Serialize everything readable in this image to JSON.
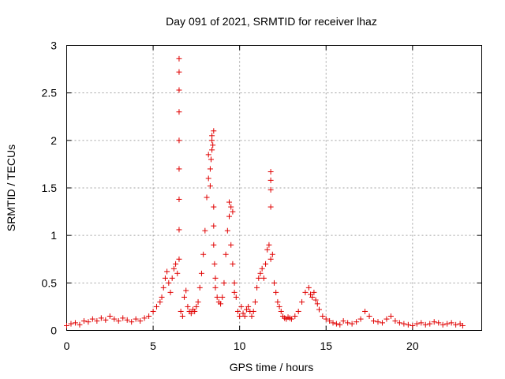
{
  "chart_data": {
    "type": "scatter",
    "title": "Day 091 of 2021, SRMTID for receiver lhaz",
    "xlabel": "GPS time / hours",
    "ylabel": "SRMTID / TECUs",
    "xlim": [
      0,
      24
    ],
    "ylim": [
      0,
      3
    ],
    "xticks": [
      "0",
      "5",
      "10",
      "15",
      "20"
    ],
    "yticks": [
      "0",
      "0.5",
      "1",
      "1.5",
      "2",
      "2.5",
      "3"
    ],
    "grid": true,
    "marker": "+",
    "color": "#e00000",
    "series": [
      {
        "name": "SRMTID",
        "x": [
          0.0,
          0.25,
          0.5,
          0.75,
          1.0,
          1.25,
          1.5,
          1.75,
          2.0,
          2.25,
          2.5,
          2.75,
          3.0,
          3.25,
          3.5,
          3.75,
          4.0,
          4.25,
          4.5,
          4.75,
          5.0,
          5.2,
          5.4,
          5.5,
          5.6,
          5.7,
          5.8,
          5.9,
          6.0,
          6.1,
          6.2,
          6.3,
          6.4,
          6.5,
          6.5,
          6.5,
          6.5,
          6.5,
          6.5,
          6.5,
          6.5,
          6.5,
          6.6,
          6.7,
          6.8,
          6.9,
          7.0,
          7.1,
          7.2,
          7.3,
          7.4,
          7.5,
          7.6,
          7.7,
          7.8,
          7.9,
          8.0,
          8.1,
          8.2,
          8.2,
          8.3,
          8.3,
          8.35,
          8.4,
          8.4,
          8.4,
          8.45,
          8.5,
          8.5,
          8.5,
          8.5,
          8.55,
          8.6,
          8.6,
          8.7,
          8.8,
          8.9,
          9.0,
          9.1,
          9.2,
          9.3,
          9.4,
          9.4,
          9.5,
          9.5,
          9.6,
          9.6,
          9.7,
          9.7,
          9.8,
          9.9,
          10.0,
          10.1,
          10.2,
          10.3,
          10.4,
          10.5,
          10.6,
          10.7,
          10.8,
          10.9,
          11.0,
          11.1,
          11.2,
          11.3,
          11.4,
          11.5,
          11.6,
          11.7,
          11.8,
          11.8,
          11.8,
          11.8,
          11.8,
          11.9,
          12.0,
          12.1,
          12.2,
          12.3,
          12.4,
          12.5,
          12.6,
          12.7,
          12.8,
          12.9,
          13.0,
          13.2,
          13.4,
          13.6,
          13.8,
          14.0,
          14.1,
          14.2,
          14.3,
          14.4,
          14.5,
          14.6,
          14.8,
          15.0,
          15.2,
          15.4,
          15.6,
          15.8,
          16.0,
          16.25,
          16.5,
          16.75,
          17.0,
          17.25,
          17.5,
          17.75,
          18.0,
          18.25,
          18.5,
          18.75,
          19.0,
          19.25,
          19.5,
          19.75,
          20.0,
          20.25,
          20.5,
          20.75,
          21.0,
          21.25,
          21.5,
          21.75,
          22.0,
          22.25,
          22.5,
          22.75,
          22.9
        ],
        "y": [
          0.05,
          0.07,
          0.08,
          0.06,
          0.1,
          0.09,
          0.12,
          0.1,
          0.13,
          0.11,
          0.15,
          0.12,
          0.1,
          0.13,
          0.11,
          0.09,
          0.12,
          0.1,
          0.13,
          0.15,
          0.2,
          0.25,
          0.3,
          0.35,
          0.45,
          0.55,
          0.62,
          0.5,
          0.4,
          0.55,
          0.65,
          0.7,
          0.6,
          1.06,
          1.38,
          1.7,
          2.0,
          2.3,
          2.53,
          2.72,
          2.86,
          0.75,
          0.2,
          0.15,
          0.35,
          0.42,
          0.25,
          0.2,
          0.18,
          0.22,
          0.2,
          0.25,
          0.3,
          0.45,
          0.6,
          0.8,
          1.05,
          1.4,
          1.6,
          1.85,
          1.52,
          1.7,
          1.8,
          1.9,
          2.0,
          2.05,
          1.95,
          1.1,
          1.3,
          0.9,
          2.1,
          0.7,
          0.55,
          0.45,
          0.35,
          0.3,
          0.28,
          0.35,
          0.5,
          0.8,
          1.05,
          1.2,
          1.35,
          1.3,
          0.9,
          1.25,
          0.7,
          0.5,
          0.4,
          0.35,
          0.2,
          0.15,
          0.25,
          0.18,
          0.15,
          0.22,
          0.25,
          0.2,
          0.15,
          0.2,
          0.3,
          0.45,
          0.55,
          0.6,
          0.65,
          0.55,
          0.7,
          0.85,
          0.9,
          1.3,
          1.48,
          1.58,
          1.67,
          0.75,
          0.8,
          0.5,
          0.4,
          0.3,
          0.25,
          0.2,
          0.15,
          0.13,
          0.12,
          0.14,
          0.13,
          0.12,
          0.15,
          0.2,
          0.3,
          0.4,
          0.45,
          0.38,
          0.35,
          0.4,
          0.32,
          0.28,
          0.22,
          0.15,
          0.12,
          0.1,
          0.08,
          0.07,
          0.06,
          0.1,
          0.08,
          0.07,
          0.09,
          0.12,
          0.2,
          0.15,
          0.1,
          0.09,
          0.08,
          0.12,
          0.15,
          0.1,
          0.08,
          0.07,
          0.06,
          0.05,
          0.07,
          0.08,
          0.06,
          0.07,
          0.09,
          0.08,
          0.06,
          0.07,
          0.08,
          0.06,
          0.07,
          0.05
        ]
      }
    ]
  }
}
